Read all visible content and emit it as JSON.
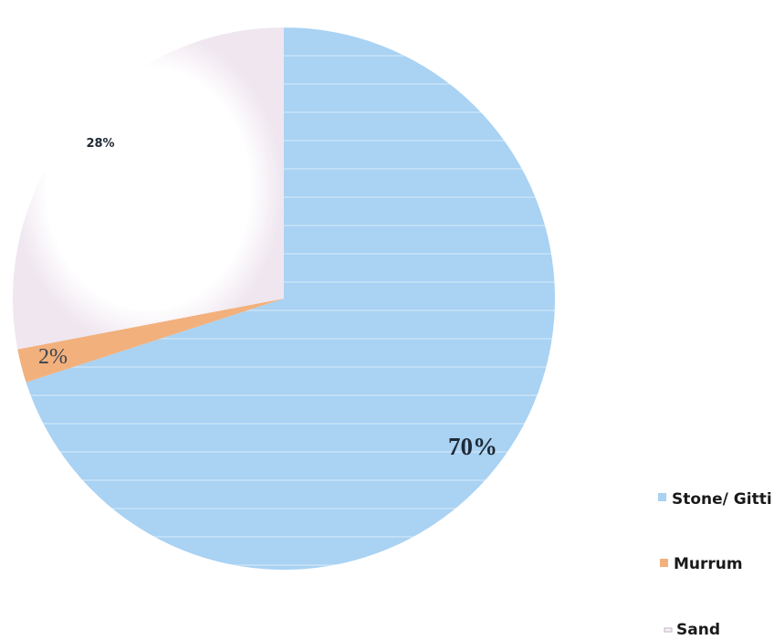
{
  "chart_data": {
    "type": "pie",
    "title": "",
    "series": [
      {
        "values": [
          70,
          2,
          28
        ],
        "labels": [
          "70%",
          "2%",
          "28%"
        ]
      }
    ],
    "categories": [
      "Stone/ Gitti",
      "Murrum",
      "Sand"
    ],
    "colors": [
      "#a9d2f3",
      "#f2b07c",
      "#f6f1f6"
    ],
    "start_angle_deg": 0,
    "direction": "clockwise",
    "legend_position": "bottom-right"
  }
}
